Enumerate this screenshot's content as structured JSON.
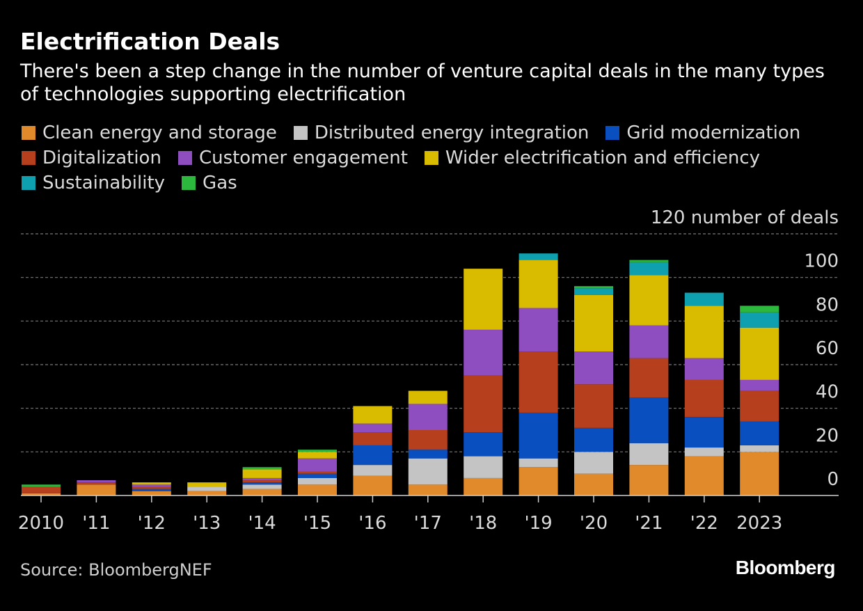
{
  "header": {
    "title": "Electrification Deals",
    "subtitle": "There's been a step change in the number of venture capital deals in the many types of technologies supporting electrification"
  },
  "legend": {
    "rows": [
      [
        {
          "label": "Clean energy and storage",
          "color": "#e08a2b"
        },
        {
          "label": "Distributed energy integration",
          "color": "#c4c4c4"
        },
        {
          "label": "Grid modernization",
          "color": "#0a4fc0"
        }
      ],
      [
        {
          "label": "Digitalization",
          "color": "#b6401d"
        },
        {
          "label": "Customer engagement",
          "color": "#8f4ec0"
        },
        {
          "label": "Wider electrification and efficiency",
          "color": "#d9bb00"
        }
      ],
      [
        {
          "label": "Sustainability",
          "color": "#0fa0b0"
        },
        {
          "label": "Gas",
          "color": "#2bb83c"
        }
      ]
    ]
  },
  "chart_data": {
    "type": "bar",
    "stacked": true,
    "unit_label": "number of deals",
    "categories": [
      "2010",
      "'11",
      "'12",
      "'13",
      "'14",
      "'15",
      "'16",
      "'17",
      "'18",
      "'19",
      "'20",
      "'21",
      "'22",
      "2023"
    ],
    "ylim": [
      0,
      120
    ],
    "yticks": [
      0,
      20,
      40,
      60,
      80,
      100,
      120
    ],
    "grid": true,
    "series": [
      {
        "name": "Clean energy and storage",
        "color": "#e08a2b",
        "values": [
          1,
          5,
          2,
          2,
          3,
          5,
          9,
          5,
          8,
          13,
          10,
          14,
          18,
          20
        ]
      },
      {
        "name": "Distributed energy integration",
        "color": "#c4c4c4",
        "values": [
          0,
          0,
          0,
          2,
          2,
          3,
          5,
          12,
          10,
          4,
          10,
          10,
          4,
          3
        ]
      },
      {
        "name": "Grid modernization",
        "color": "#0a4fc0",
        "values": [
          0,
          0,
          1,
          0,
          1,
          2,
          9,
          4,
          11,
          21,
          11,
          21,
          14,
          11
        ]
      },
      {
        "name": "Digitalization",
        "color": "#b6401d",
        "values": [
          3,
          1,
          1,
          0,
          1,
          1,
          6,
          9,
          26,
          28,
          20,
          18,
          17,
          14
        ]
      },
      {
        "name": "Customer engagement",
        "color": "#8f4ec0",
        "values": [
          0,
          1,
          1,
          0,
          1,
          6,
          4,
          12,
          21,
          20,
          15,
          15,
          10,
          5
        ]
      },
      {
        "name": "Wider electrification and efficiency",
        "color": "#d9bb00",
        "values": [
          0,
          0,
          1,
          2,
          4,
          3,
          8,
          6,
          28,
          22,
          26,
          23,
          24,
          24
        ]
      },
      {
        "name": "Sustainability",
        "color": "#0fa0b0",
        "values": [
          0,
          0,
          0,
          0,
          0,
          0,
          0,
          0,
          0,
          3,
          3,
          6,
          6,
          7
        ]
      },
      {
        "name": "Gas",
        "color": "#2bb83c",
        "values": [
          1,
          0,
          0,
          0,
          1,
          1,
          0,
          0,
          0,
          0,
          1,
          1,
          0,
          3
        ]
      }
    ]
  },
  "footer": {
    "source": "Source: BloombergNEF",
    "brand": "Bloomberg"
  }
}
